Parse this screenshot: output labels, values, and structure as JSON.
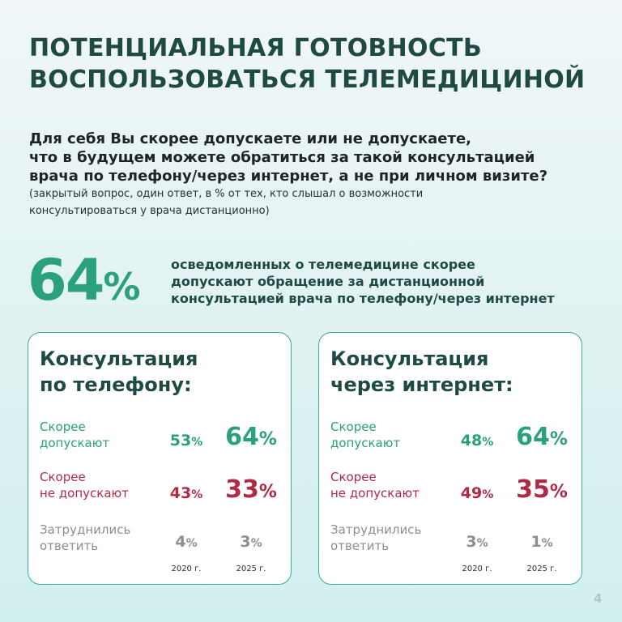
{
  "title": {
    "line1": "ПОТЕНЦИАЛЬНАЯ ГОТОВНОСТЬ",
    "line2": "ВОСПОЛЬЗОВАТЬСЯ ТЕЛЕМЕДИЦИНОЙ"
  },
  "question": {
    "line1": "Для себя Вы скорее допускаете или не допускаете,",
    "line2": "что в будущем можете обратиться за такой консультацией",
    "line3": "врача по телефону/через интернет, а не при личном визите?",
    "note_line1": "(закрытый вопрос, один ответ, в % от тех, кто слышал о возможности",
    "note_line2": "консультироваться у врача дистанционно)"
  },
  "headline": {
    "value": "64",
    "sign": "%",
    "line1": "осведомленных о телемедицине скорее",
    "line2": "допускают обращение за дистанционной",
    "line3": "консультацией врача по телефону/через интернет"
  },
  "cards": [
    {
      "title_line1": "Консультация",
      "title_line2": "по телефону:",
      "rows": [
        {
          "label_line1": "Скорее",
          "label_line2": "допускают",
          "v2020": "53",
          "v2025": "64"
        },
        {
          "label_line1": "Скорее",
          "label_line2": "не допускают",
          "v2020": "43",
          "v2025": "33"
        },
        {
          "label_line1": "Затруднились",
          "label_line2": "ответить",
          "v2020": "4",
          "v2025": "3"
        }
      ],
      "year1": "2020 г.",
      "year2": "2025 г."
    },
    {
      "title_line1": "Консультация",
      "title_line2": "через интернет:",
      "rows": [
        {
          "label_line1": "Скорее",
          "label_line2": "допускают",
          "v2020": "48",
          "v2025": "64"
        },
        {
          "label_line1": "Скорее",
          "label_line2": "не допускают",
          "v2020": "49",
          "v2025": "35"
        },
        {
          "label_line1": "Затруднились",
          "label_line2": "ответить",
          "v2020": "3",
          "v2025": "1"
        }
      ],
      "year1": "2020 г.",
      "year2": "2025 г."
    }
  ],
  "percent_sign": "%",
  "page_number": "4",
  "colors": {
    "accent_green": "#2aa07f",
    "accent_red": "#b02a46",
    "muted_gray": "#8b8f92",
    "title_dark": "#1f4a44"
  }
}
